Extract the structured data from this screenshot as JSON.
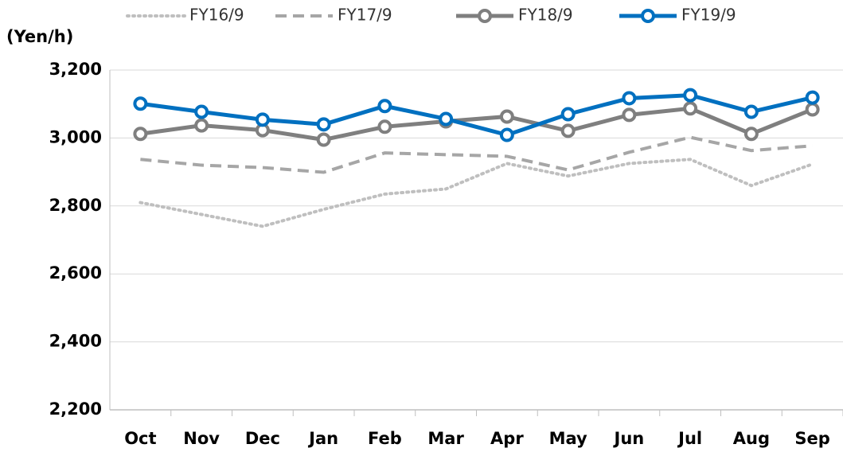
{
  "chart_data": {
    "type": "line",
    "y_label": "(Yen/h)",
    "categories": [
      "Oct",
      "Nov",
      "Dec",
      "Jan",
      "Feb",
      "Mar",
      "Apr",
      "May",
      "Jun",
      "Jul",
      "Aug",
      "Sep"
    ],
    "series": [
      {
        "name": "FY16/9",
        "color": "#bfbfbf",
        "dash": "dotted",
        "marker": false,
        "values": [
          2810,
          2775,
          2740,
          2790,
          2835,
          2850,
          2925,
          2888,
          2925,
          2937,
          2860,
          2923
        ]
      },
      {
        "name": "FY17/9",
        "color": "#a6a6a6",
        "dash": "dashed",
        "marker": false,
        "values": [
          2937,
          2920,
          2913,
          2899,
          2956,
          2951,
          2946,
          2906,
          2958,
          3002,
          2963,
          2977
        ]
      },
      {
        "name": "FY18/9",
        "color": "#7f7f7f",
        "dash": "solid",
        "marker": true,
        "values": [
          3012,
          3037,
          3023,
          2995,
          3033,
          3049,
          3063,
          3021,
          3068,
          3087,
          3012,
          3084
        ]
      },
      {
        "name": "FY19/9",
        "color": "#0070c0",
        "dash": "solid",
        "marker": true,
        "values": [
          3101,
          3077,
          3054,
          3040,
          3094,
          3056,
          3009,
          3070,
          3117,
          3126,
          3077,
          3119
        ]
      }
    ],
    "ylim": [
      2200,
      3200
    ],
    "yticks": [
      {
        "value": 2200,
        "label": "2,200"
      },
      {
        "value": 2400,
        "label": "2,400"
      },
      {
        "value": 2600,
        "label": "2,600"
      },
      {
        "value": 2800,
        "label": "2,800"
      },
      {
        "value": 3000,
        "label": "3,000"
      },
      {
        "value": 3200,
        "label": "3,200"
      }
    ],
    "grid": true,
    "legend": "top"
  }
}
